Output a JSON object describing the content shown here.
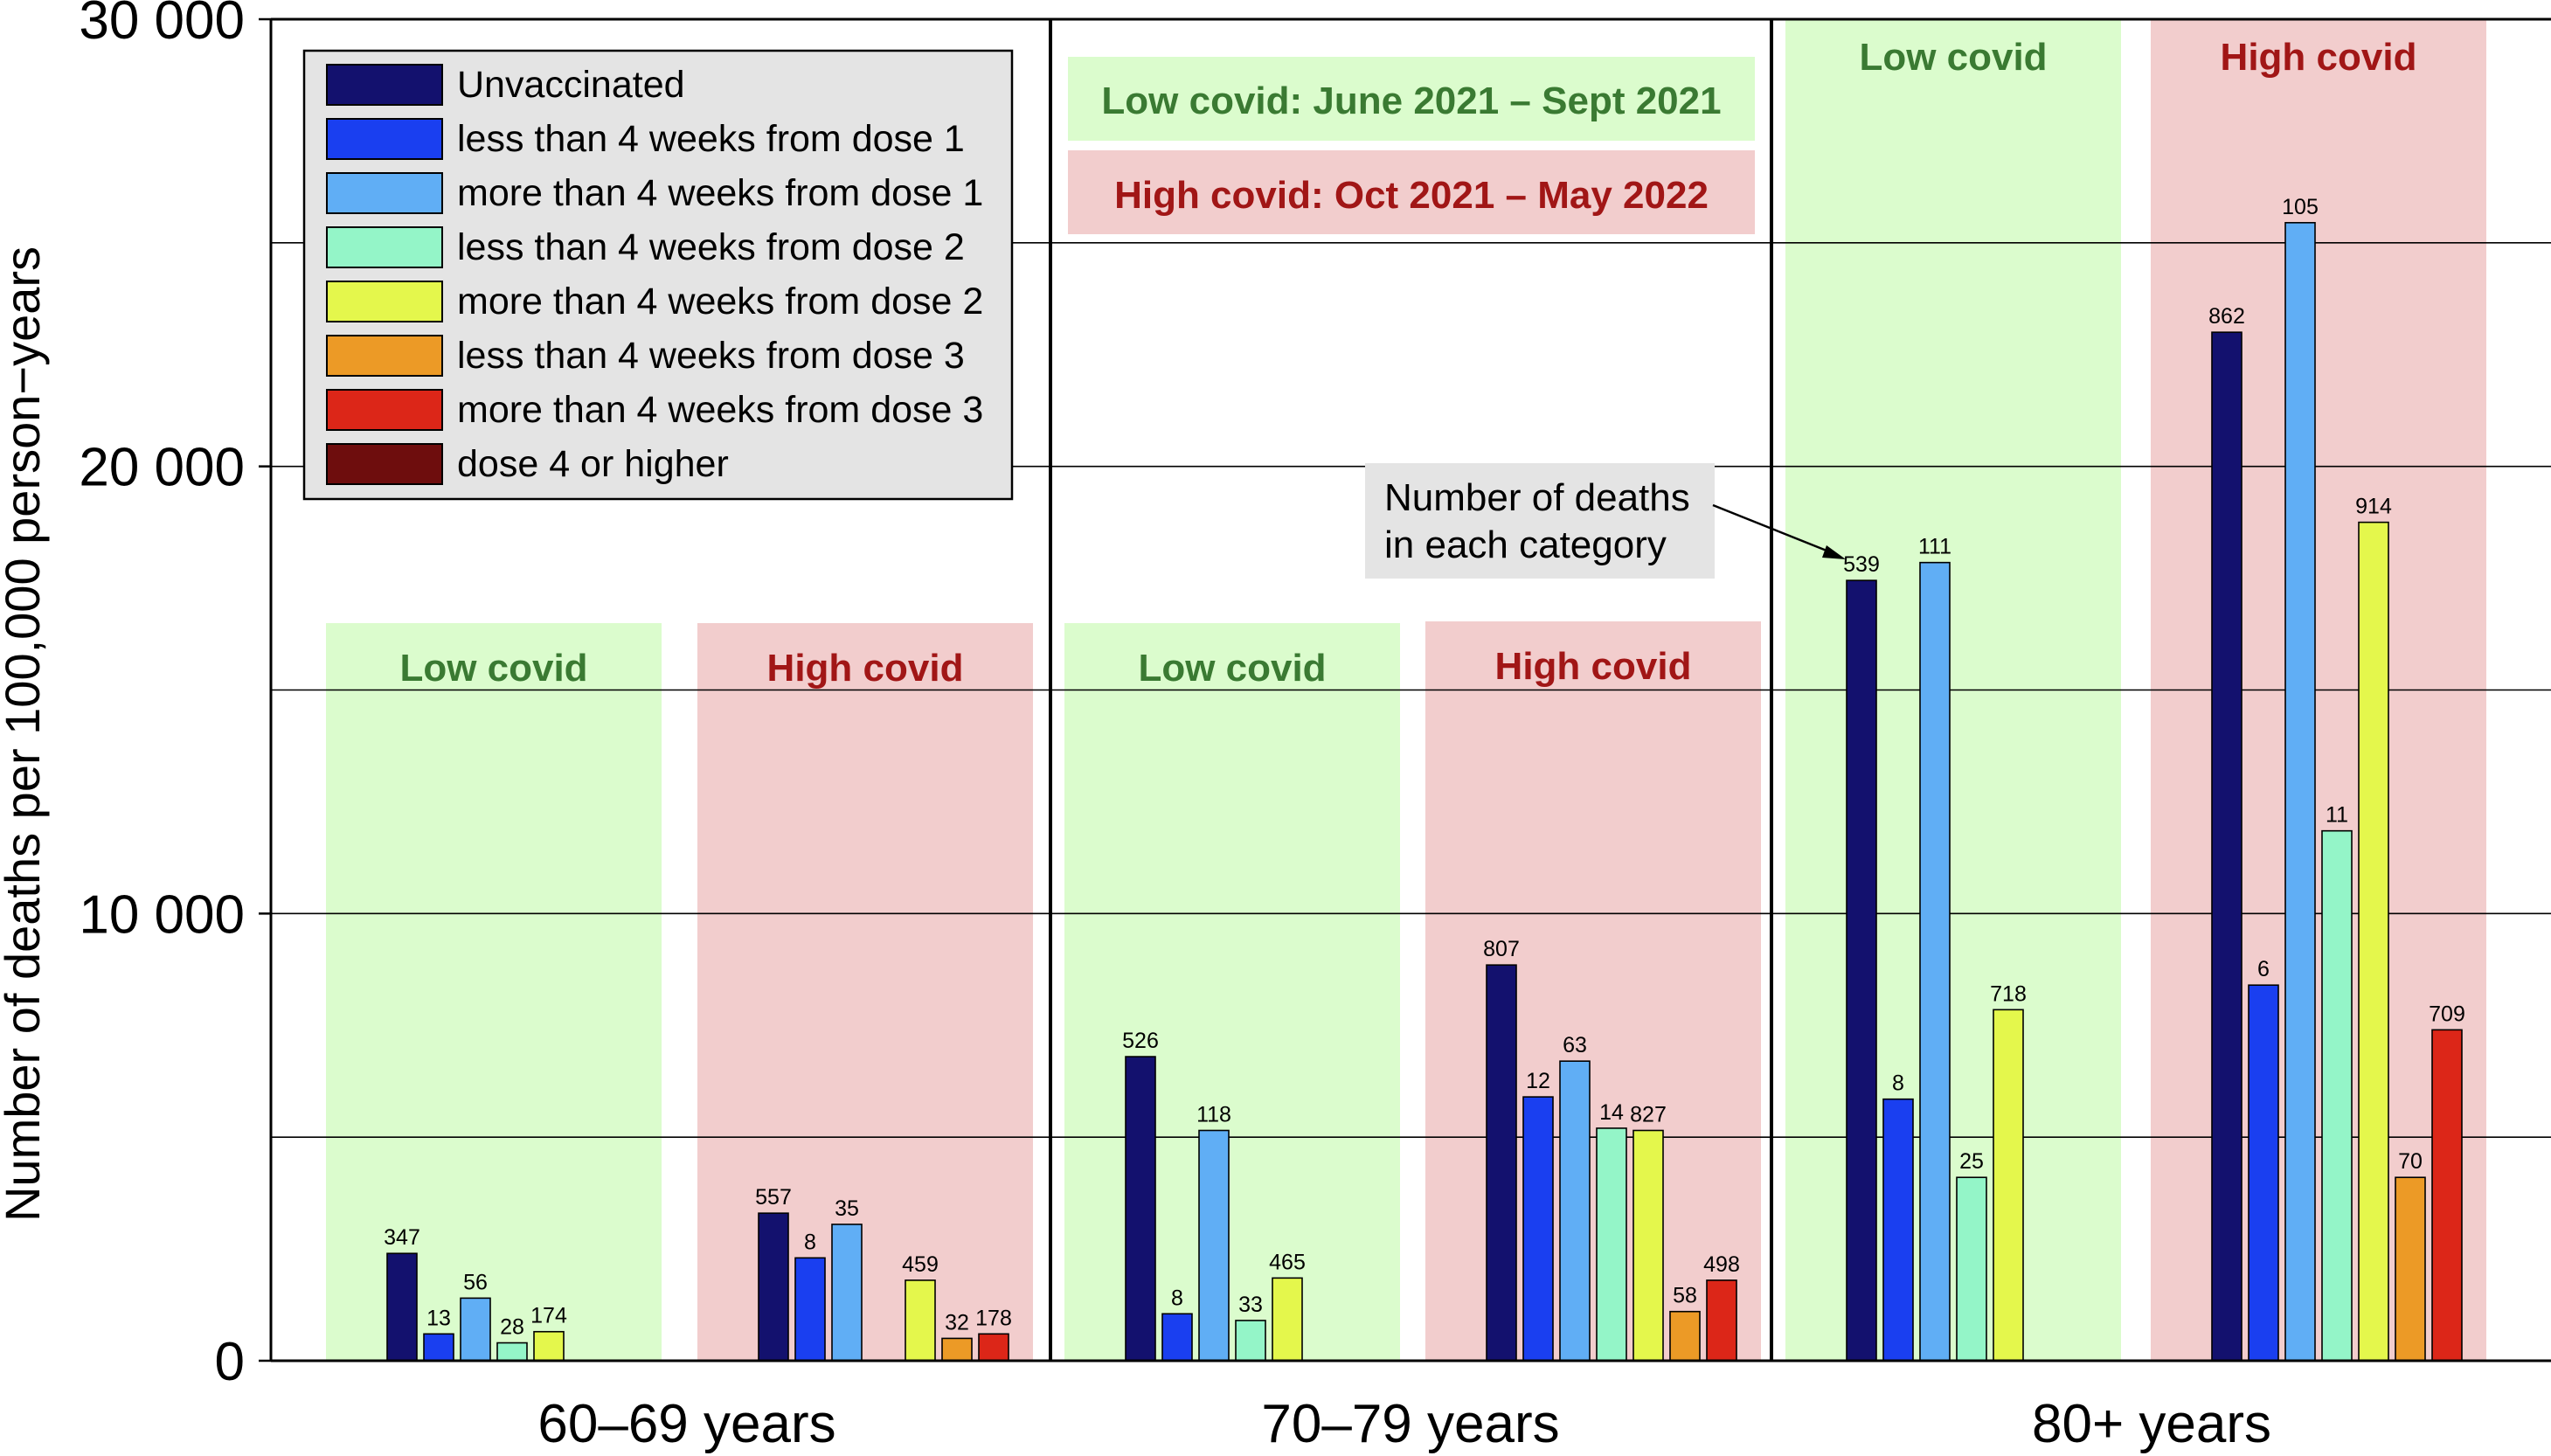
{
  "chart_data": {
    "type": "bar",
    "ylabel": "Number of deaths per 100,000 person−years",
    "ylim": [
      0,
      30000
    ],
    "yticks": [
      {
        "value": 0,
        "label": "0"
      },
      {
        "value": 10000,
        "label": "10 000"
      },
      {
        "value": 20000,
        "label": "20 000"
      },
      {
        "value": 30000,
        "label": "30 000"
      }
    ],
    "gridlines": [
      5000,
      10000,
      15000,
      20000,
      25000
    ],
    "note_low": "Low covid: June 2021 – Sept 2021",
    "note_high": "High covid: Oct 2021 – May 2022",
    "annotation": [
      "Number of deaths",
      "in each category"
    ],
    "legend": [
      {
        "name": "Unvaccinated",
        "color": "#13116e"
      },
      {
        "name": "less than 4 weeks from dose 1",
        "color": "#1a3ff0"
      },
      {
        "name": "more than 4 weeks from dose 1",
        "color": "#60aef5"
      },
      {
        "name": "less than 4 weeks from dose 2",
        "color": "#94f5c8"
      },
      {
        "name": "more than 4 weeks from dose 2",
        "color": "#e4f74c"
      },
      {
        "name": "less than 4 weeks from dose 3",
        "color": "#ec9a26"
      },
      {
        "name": "more than 4 weeks from dose 3",
        "color": "#dc2618"
      },
      {
        "name": "dose 4 or higher",
        "color": "#6e0d0d"
      }
    ],
    "groups": [
      {
        "label": "60–69 years",
        "periods": [
          {
            "label": "Low covid",
            "kind": "low",
            "bars": [
              {
                "cat": 0,
                "value": 2400,
                "deaths": "347"
              },
              {
                "cat": 1,
                "value": 600,
                "deaths": "13"
              },
              {
                "cat": 2,
                "value": 1400,
                "deaths": "56"
              },
              {
                "cat": 3,
                "value": 400,
                "deaths": "28"
              },
              {
                "cat": 4,
                "value": 650,
                "deaths": "174"
              }
            ]
          },
          {
            "label": "High covid",
            "kind": "high",
            "bars": [
              {
                "cat": 0,
                "value": 3300,
                "deaths": "557"
              },
              {
                "cat": 1,
                "value": 2300,
                "deaths": "8"
              },
              {
                "cat": 2,
                "value": 3050,
                "deaths": "35"
              },
              {
                "cat": 4,
                "value": 1800,
                "deaths": "459"
              },
              {
                "cat": 5,
                "value": 500,
                "deaths": "32"
              },
              {
                "cat": 6,
                "value": 600,
                "deaths": "178"
              }
            ]
          }
        ]
      },
      {
        "label": "70–79 years",
        "periods": [
          {
            "label": "Low covid",
            "kind": "low",
            "bars": [
              {
                "cat": 0,
                "value": 6800,
                "deaths": "526"
              },
              {
                "cat": 1,
                "value": 1050,
                "deaths": "8"
              },
              {
                "cat": 2,
                "value": 5150,
                "deaths": "118"
              },
              {
                "cat": 3,
                "value": 900,
                "deaths": "33"
              },
              {
                "cat": 4,
                "value": 1850,
                "deaths": "465"
              }
            ]
          },
          {
            "label": "High covid",
            "kind": "high",
            "bars": [
              {
                "cat": 0,
                "value": 8850,
                "deaths": "807"
              },
              {
                "cat": 1,
                "value": 5900,
                "deaths": "12"
              },
              {
                "cat": 2,
                "value": 6700,
                "deaths": "63"
              },
              {
                "cat": 3,
                "value": 5200,
                "deaths": "14"
              },
              {
                "cat": 4,
                "value": 5150,
                "deaths": "827"
              },
              {
                "cat": 5,
                "value": 1100,
                "deaths": "58"
              },
              {
                "cat": 6,
                "value": 1800,
                "deaths": "498"
              }
            ]
          }
        ]
      },
      {
        "label": "80+ years",
        "periods": [
          {
            "label": "Low covid",
            "kind": "low",
            "bars": [
              {
                "cat": 0,
                "value": 17450,
                "deaths": "539"
              },
              {
                "cat": 1,
                "value": 5850,
                "deaths": "8"
              },
              {
                "cat": 2,
                "value": 17850,
                "deaths": "111"
              },
              {
                "cat": 3,
                "value": 4100,
                "deaths": "25"
              },
              {
                "cat": 4,
                "value": 7850,
                "deaths": "718"
              }
            ]
          },
          {
            "label": "High covid",
            "kind": "high",
            "bars": [
              {
                "cat": 0,
                "value": 23000,
                "deaths": "862"
              },
              {
                "cat": 1,
                "value": 8400,
                "deaths": "6"
              },
              {
                "cat": 2,
                "value": 25450,
                "deaths": "105"
              },
              {
                "cat": 3,
                "value": 11850,
                "deaths": "11"
              },
              {
                "cat": 4,
                "value": 18750,
                "deaths": "914"
              },
              {
                "cat": 5,
                "value": 4100,
                "deaths": "70"
              },
              {
                "cat": 6,
                "value": 7400,
                "deaths": "709"
              }
            ]
          }
        ]
      }
    ]
  }
}
